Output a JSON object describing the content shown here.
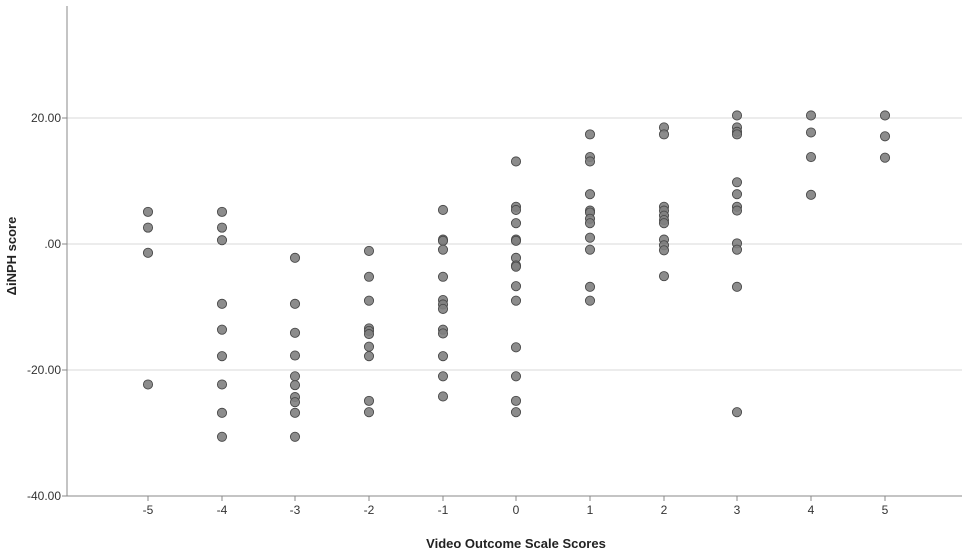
{
  "chart_data": {
    "type": "scatter",
    "xlabel": "Video Outcome Scale Scores",
    "ylabel": "ΔiNPH score",
    "xlim": [
      -6,
      6
    ],
    "ylim": [
      -40,
      38
    ],
    "x_ticks": [
      -5,
      -4,
      -3,
      -2,
      -1,
      0,
      1,
      2,
      3,
      4,
      5
    ],
    "x_tick_labels": [
      "-5",
      "-4",
      "-3",
      "-2",
      "-1",
      "0",
      "1",
      "2",
      "3",
      "4",
      "5"
    ],
    "y_ticks": [
      -40,
      -20,
      0,
      20
    ],
    "y_tick_labels": [
      "-40.00",
      "-20.00",
      ".00",
      "20.00"
    ],
    "gridlines": "horizontal",
    "marker_fill": "#808080",
    "marker_stroke": "#4a4a4a",
    "axis_color": "#888888",
    "grid_color": "#d9d9d9",
    "points": [
      {
        "x": -5,
        "y": 5.1
      },
      {
        "x": -5,
        "y": 2.6
      },
      {
        "x": -5,
        "y": -1.4
      },
      {
        "x": -5,
        "y": -22.3
      },
      {
        "x": -4,
        "y": 5.1
      },
      {
        "x": -4,
        "y": 2.6
      },
      {
        "x": -4,
        "y": 0.6
      },
      {
        "x": -4,
        "y": -9.5
      },
      {
        "x": -4,
        "y": -13.6
      },
      {
        "x": -4,
        "y": -17.8
      },
      {
        "x": -4,
        "y": -22.3
      },
      {
        "x": -4,
        "y": -26.8
      },
      {
        "x": -4,
        "y": -30.6
      },
      {
        "x": -3,
        "y": -2.2
      },
      {
        "x": -3,
        "y": -9.5
      },
      {
        "x": -3,
        "y": -14.1
      },
      {
        "x": -3,
        "y": -17.7
      },
      {
        "x": -3,
        "y": -21.0
      },
      {
        "x": -3,
        "y": -22.4
      },
      {
        "x": -3,
        "y": -24.3
      },
      {
        "x": -3,
        "y": -25.1
      },
      {
        "x": -3,
        "y": -26.8
      },
      {
        "x": -3,
        "y": -30.6
      },
      {
        "x": -2,
        "y": -1.1
      },
      {
        "x": -2,
        "y": -5.2
      },
      {
        "x": -2,
        "y": -9.0
      },
      {
        "x": -2,
        "y": -13.4
      },
      {
        "x": -2,
        "y": -13.8
      },
      {
        "x": -2,
        "y": -14.3
      },
      {
        "x": -2,
        "y": -16.3
      },
      {
        "x": -2,
        "y": -17.8
      },
      {
        "x": -2,
        "y": -24.9
      },
      {
        "x": -2,
        "y": -26.7
      },
      {
        "x": -1,
        "y": 5.4
      },
      {
        "x": -1,
        "y": 0.7
      },
      {
        "x": -1,
        "y": 0.5
      },
      {
        "x": -1,
        "y": -0.9
      },
      {
        "x": -1,
        "y": -5.2
      },
      {
        "x": -1,
        "y": -8.9
      },
      {
        "x": -1,
        "y": -9.6
      },
      {
        "x": -1,
        "y": -10.3
      },
      {
        "x": -1,
        "y": -13.6
      },
      {
        "x": -1,
        "y": -14.2
      },
      {
        "x": -1,
        "y": -17.8
      },
      {
        "x": -1,
        "y": -21.0
      },
      {
        "x": -1,
        "y": -24.2
      },
      {
        "x": 0,
        "y": 13.1
      },
      {
        "x": 0,
        "y": 5.9
      },
      {
        "x": 0,
        "y": 5.4
      },
      {
        "x": 0,
        "y": 3.3
      },
      {
        "x": 0,
        "y": 0.7
      },
      {
        "x": 0,
        "y": 0.5
      },
      {
        "x": 0,
        "y": -2.2
      },
      {
        "x": 0,
        "y": -3.4
      },
      {
        "x": 0,
        "y": -3.6
      },
      {
        "x": 0,
        "y": -6.7
      },
      {
        "x": 0,
        "y": -9.0
      },
      {
        "x": 0,
        "y": -16.4
      },
      {
        "x": 0,
        "y": -21.0
      },
      {
        "x": 0,
        "y": -24.9
      },
      {
        "x": 0,
        "y": -26.7
      },
      {
        "x": 1,
        "y": 17.4
      },
      {
        "x": 1,
        "y": 13.8
      },
      {
        "x": 1,
        "y": 13.1
      },
      {
        "x": 1,
        "y": 7.9
      },
      {
        "x": 1,
        "y": 5.3
      },
      {
        "x": 1,
        "y": 5.0
      },
      {
        "x": 1,
        "y": 4.0
      },
      {
        "x": 1,
        "y": 3.3
      },
      {
        "x": 1,
        "y": 1.0
      },
      {
        "x": 1,
        "y": -0.9
      },
      {
        "x": 1,
        "y": -6.8
      },
      {
        "x": 1,
        "y": -9.0
      },
      {
        "x": 2,
        "y": 18.5
      },
      {
        "x": 2,
        "y": 17.4
      },
      {
        "x": 2,
        "y": 5.9
      },
      {
        "x": 2,
        "y": 5.3
      },
      {
        "x": 2,
        "y": 4.5
      },
      {
        "x": 2,
        "y": 3.8
      },
      {
        "x": 2,
        "y": 3.3
      },
      {
        "x": 2,
        "y": 0.7
      },
      {
        "x": 2,
        "y": -0.2
      },
      {
        "x": 2,
        "y": -1.0
      },
      {
        "x": 2,
        "y": -5.1
      },
      {
        "x": 3,
        "y": 20.4
      },
      {
        "x": 3,
        "y": 18.5
      },
      {
        "x": 3,
        "y": 17.8
      },
      {
        "x": 3,
        "y": 17.4
      },
      {
        "x": 3,
        "y": 9.8
      },
      {
        "x": 3,
        "y": 7.9
      },
      {
        "x": 3,
        "y": 5.9
      },
      {
        "x": 3,
        "y": 5.3
      },
      {
        "x": 3,
        "y": 0.1
      },
      {
        "x": 3,
        "y": -0.9
      },
      {
        "x": 3,
        "y": -6.8
      },
      {
        "x": 3,
        "y": -26.7
      },
      {
        "x": 4,
        "y": 20.4
      },
      {
        "x": 4,
        "y": 17.7
      },
      {
        "x": 4,
        "y": 13.8
      },
      {
        "x": 4,
        "y": 7.8
      },
      {
        "x": 5,
        "y": 20.4
      },
      {
        "x": 5,
        "y": 17.1
      },
      {
        "x": 5,
        "y": 13.7
      }
    ]
  }
}
